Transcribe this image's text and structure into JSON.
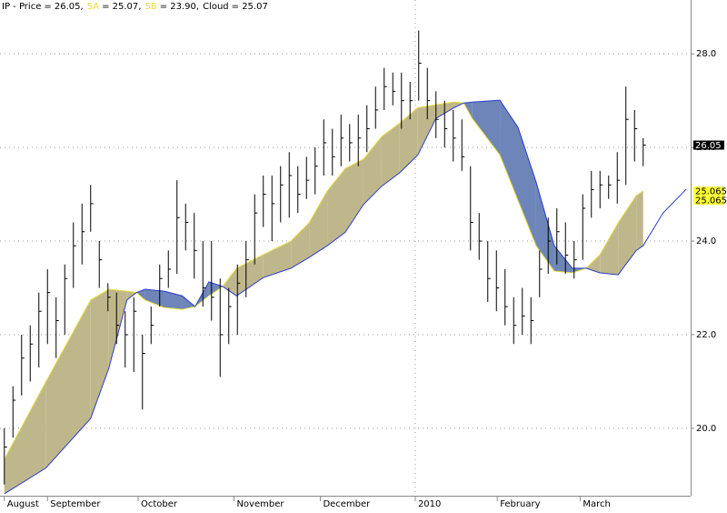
{
  "chart_data": {
    "type": "hlc-cloud",
    "header": [
      {
        "name": "IP - Price",
        "text": "= 26.05,",
        "color": "#000000"
      },
      {
        "name": "SA",
        "text": "= 25.07,",
        "color": "#e8dc3c"
      },
      {
        "name": "SB",
        "text": "= 23.90,",
        "color": "#e8dc3c"
      },
      {
        "name": "Cloud",
        "text": "= 25.07",
        "color": "#000000"
      }
    ],
    "xlim": [
      -0.5,
      79.5
    ],
    "xticks": [
      {
        "value": 0,
        "label": "August"
      },
      {
        "value": 5,
        "label": "September"
      },
      {
        "value": 15.5,
        "label": "October"
      },
      {
        "value": 26.6,
        "label": "November"
      },
      {
        "value": 36.6,
        "label": "December"
      },
      {
        "value": 47.6,
        "label": "2010"
      },
      {
        "value": 57.1,
        "label": "February"
      },
      {
        "value": 66.7,
        "label": "March"
      }
    ],
    "ylim": [
      18.56,
      29.15
    ],
    "yticks": [
      {
        "value": 20,
        "label": "20.0"
      },
      {
        "value": 22,
        "label": "22.0"
      },
      {
        "value": 24,
        "label": "24.0"
      },
      {
        "value": 26,
        "label": "26.0"
      },
      {
        "value": 28,
        "label": "28.0"
      }
    ],
    "grid": true,
    "vline": 47.6,
    "bars": {
      "color": "#000000",
      "high": [
        20.0,
        20.9,
        22.0,
        22.2,
        22.9,
        23.4,
        22.8,
        23.5,
        24.4,
        24.8,
        25.2,
        24.0,
        23.1,
        22.9,
        22.5,
        22.8,
        22.0,
        22.6,
        23.5,
        23.8,
        25.3,
        24.8,
        24.6,
        24.0,
        24.0,
        23.2,
        23.0,
        23.5,
        24.0,
        25.0,
        25.4,
        25.4,
        25.6,
        25.9,
        25.6,
        25.8,
        26.0,
        26.6,
        26.4,
        26.7,
        26.5,
        26.7,
        26.9,
        27.3,
        27.7,
        27.6,
        27.6,
        27.4,
        28.5,
        27.7,
        27.2,
        27.0,
        26.8,
        26.6,
        25.6,
        24.6,
        24.0,
        23.8,
        23.4,
        22.8,
        23.0,
        22.8,
        23.8,
        24.5,
        24.7,
        24.4,
        24.0,
        25.0,
        25.5,
        25.5,
        25.4,
        25.9,
        27.3,
        26.8,
        26.2
      ],
      "low": [
        18.8,
        19.8,
        20.7,
        21.0,
        21.3,
        21.8,
        21.5,
        22.0,
        23.0,
        23.5,
        24.2,
        23.0,
        22.5,
        21.8,
        21.3,
        21.2,
        20.4,
        21.8,
        22.6,
        23.0,
        23.3,
        23.8,
        23.2,
        22.6,
        22.3,
        21.1,
        21.8,
        22.0,
        22.8,
        23.5,
        24.3,
        24.0,
        24.4,
        24.5,
        24.6,
        24.9,
        25.0,
        25.4,
        25.4,
        25.6,
        25.7,
        25.6,
        25.9,
        26.4,
        26.8,
        26.9,
        26.4,
        26.6,
        27.0,
        26.6,
        26.2,
        26.0,
        25.7,
        25.5,
        23.8,
        23.6,
        22.7,
        22.5,
        22.2,
        21.8,
        22.0,
        21.8,
        22.8,
        23.3,
        23.5,
        23.3,
        23.2,
        23.6,
        24.5,
        24.7,
        24.9,
        24.8,
        25.2,
        25.7,
        25.6
      ],
      "close": [
        19.6,
        20.6,
        21.5,
        21.8,
        22.5,
        22.9,
        22.3,
        23.2,
        23.9,
        24.2,
        24.8,
        23.6,
        22.8,
        22.2,
        22.0,
        22.5,
        21.6,
        22.2,
        23.2,
        23.4,
        24.5,
        24.4,
        23.8,
        23.0,
        22.8,
        22.0,
        22.6,
        23.1,
        23.6,
        24.6,
        25.0,
        24.8,
        25.2,
        25.4,
        25.0,
        25.3,
        25.6,
        26.1,
        25.8,
        26.2,
        26.1,
        26.2,
        26.4,
        26.8,
        27.3,
        27.2,
        27.0,
        27.0,
        27.8,
        27.0,
        26.6,
        26.4,
        26.2,
        25.8,
        24.4,
        24.0,
        23.2,
        23.0,
        22.6,
        22.2,
        22.4,
        22.3,
        23.4,
        24.0,
        24.2,
        23.7,
        23.6,
        24.7,
        25.1,
        25.2,
        25.2,
        25.3,
        26.6,
        26.4,
        26.05
      ]
    },
    "cloud_x": [
      0,
      4.8,
      10,
      12.1,
      14.2,
      15.3,
      16.3,
      18.5,
      20.6,
      22.1,
      23.7,
      25.3,
      26.9,
      30,
      33.2,
      35.3,
      37.4,
      39.5,
      41.6,
      43.7,
      45.8,
      47.9,
      50,
      52.1,
      53.2,
      54.2,
      57.4,
      59.5,
      61.6,
      63.7,
      65.8,
      67.4,
      69,
      71.1,
      73.2,
      74,
      76.3,
      79
    ],
    "cloud_colors": {
      "up": "#bfb78c",
      "down": "#6d85b8"
    },
    "series": [
      {
        "name": "SA",
        "color": "#e8dc3c",
        "values": [
          19.34,
          20.99,
          22.74,
          22.97,
          22.93,
          22.9,
          22.74,
          22.58,
          22.54,
          22.6,
          22.83,
          23.03,
          23.42,
          23.71,
          24.0,
          24.39,
          25.07,
          25.55,
          25.75,
          26.23,
          26.52,
          26.85,
          26.91,
          26.97,
          26.95,
          26.62,
          25.84,
          24.87,
          23.9,
          23.36,
          23.32,
          23.42,
          23.71,
          24.39,
          24.97,
          25.07,
          null,
          null
        ]
      },
      {
        "name": "SB",
        "color": "#2a3cc8",
        "values": [
          18.6,
          19.15,
          20.21,
          21.28,
          22.74,
          22.9,
          22.97,
          22.93,
          22.83,
          22.6,
          23.13,
          23.03,
          22.83,
          23.22,
          23.42,
          23.65,
          23.9,
          24.19,
          24.78,
          25.17,
          25.46,
          25.84,
          26.62,
          26.85,
          26.95,
          26.97,
          27.01,
          26.43,
          25.26,
          23.9,
          23.42,
          23.42,
          23.32,
          23.28,
          23.8,
          23.9,
          24.6,
          25.11
        ]
      }
    ],
    "markers": [
      {
        "value": 26.05,
        "label": "26.05",
        "color": "#000000",
        "text_color": "#ffffff"
      },
      {
        "value": 25.065,
        "label": "25.065",
        "color": "#ffff33",
        "text_color": "#000000"
      },
      {
        "value": 25.065,
        "label": "25.065",
        "color": "#ffff33",
        "text_color": "#000000"
      }
    ]
  }
}
